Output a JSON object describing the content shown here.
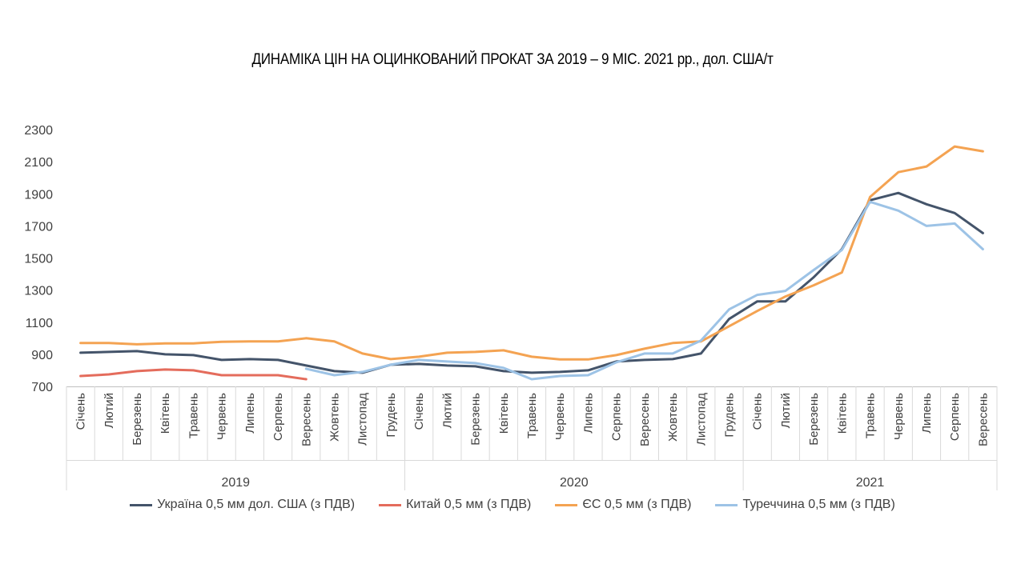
{
  "chart_data": {
    "type": "line",
    "title": "ДИНАМІКА ЦІН НА ОЦИНКОВАНИЙ ПРОКАТ ЗА 2019 – 9 МІС. 2021 рр., дол. США/т",
    "ylim": [
      700,
      2300
    ],
    "yticks": [
      "2300",
      "2100",
      "1900",
      "1700",
      "1500",
      "1300",
      "1100",
      "900",
      "700"
    ],
    "years": [
      {
        "label": "2019",
        "months": [
          "Січень",
          "Лютий",
          "Березень",
          "Квітень",
          "Травень",
          "Червень",
          "Липень",
          "Серпень",
          "Вересень",
          "Жовтень",
          "Листопад",
          "Грудень"
        ]
      },
      {
        "label": "2020",
        "months": [
          "Січень",
          "Лютий",
          "Березень",
          "Квітень",
          "Травень",
          "Червень",
          "Липень",
          "Серпень",
          "Вересень",
          "Жовтень",
          "Листопад",
          "Грудень"
        ]
      },
      {
        "label": "2021",
        "months": [
          "Січень",
          "Лютий",
          "Березень",
          "Квітень",
          "Травень",
          "Червень",
          "Липень",
          "Серпень",
          "Вересень"
        ]
      }
    ],
    "series": [
      {
        "name": "Україна 0,5 мм дол. США (з ПДВ)",
        "color": "#44546a",
        "values": [
          910,
          915,
          920,
          900,
          895,
          865,
          870,
          865,
          830,
          795,
          785,
          835,
          840,
          830,
          825,
          795,
          785,
          790,
          800,
          855,
          865,
          870,
          905,
          1120,
          1230,
          1230,
          1380,
          1555,
          1860,
          1905,
          1835,
          1780,
          1655
        ]
      },
      {
        "name": "Китай 0,5 мм (з ПДВ)",
        "color": "#e46c5c",
        "values": [
          765,
          775,
          795,
          805,
          800,
          770,
          770,
          770,
          745,
          null,
          null,
          null,
          null,
          null,
          null,
          null,
          null,
          null,
          null,
          null,
          null,
          null,
          null,
          null,
          null,
          null,
          null,
          null,
          null,
          null,
          null,
          null,
          null
        ]
      },
      {
        "name": "ЄС 0,5 мм (з ПДВ)",
        "color": "#f4a352",
        "values": [
          970,
          970,
          962,
          968,
          968,
          978,
          980,
          980,
          1000,
          980,
          905,
          870,
          885,
          910,
          915,
          925,
          885,
          868,
          868,
          895,
          935,
          970,
          980,
          1075,
          1170,
          1260,
          1330,
          1410,
          1880,
          2035,
          2070,
          2195,
          2165
        ]
      },
      {
        "name": "Туреччина 0,5 мм (з ПДВ)",
        "color": "#9dc3e6",
        "values": [
          null,
          null,
          null,
          null,
          null,
          null,
          null,
          null,
          810,
          770,
          790,
          835,
          865,
          855,
          845,
          815,
          745,
          765,
          770,
          850,
          905,
          905,
          985,
          1180,
          1270,
          1295,
          1425,
          1550,
          1850,
          1795,
          1700,
          1715,
          1555
        ]
      }
    ]
  }
}
